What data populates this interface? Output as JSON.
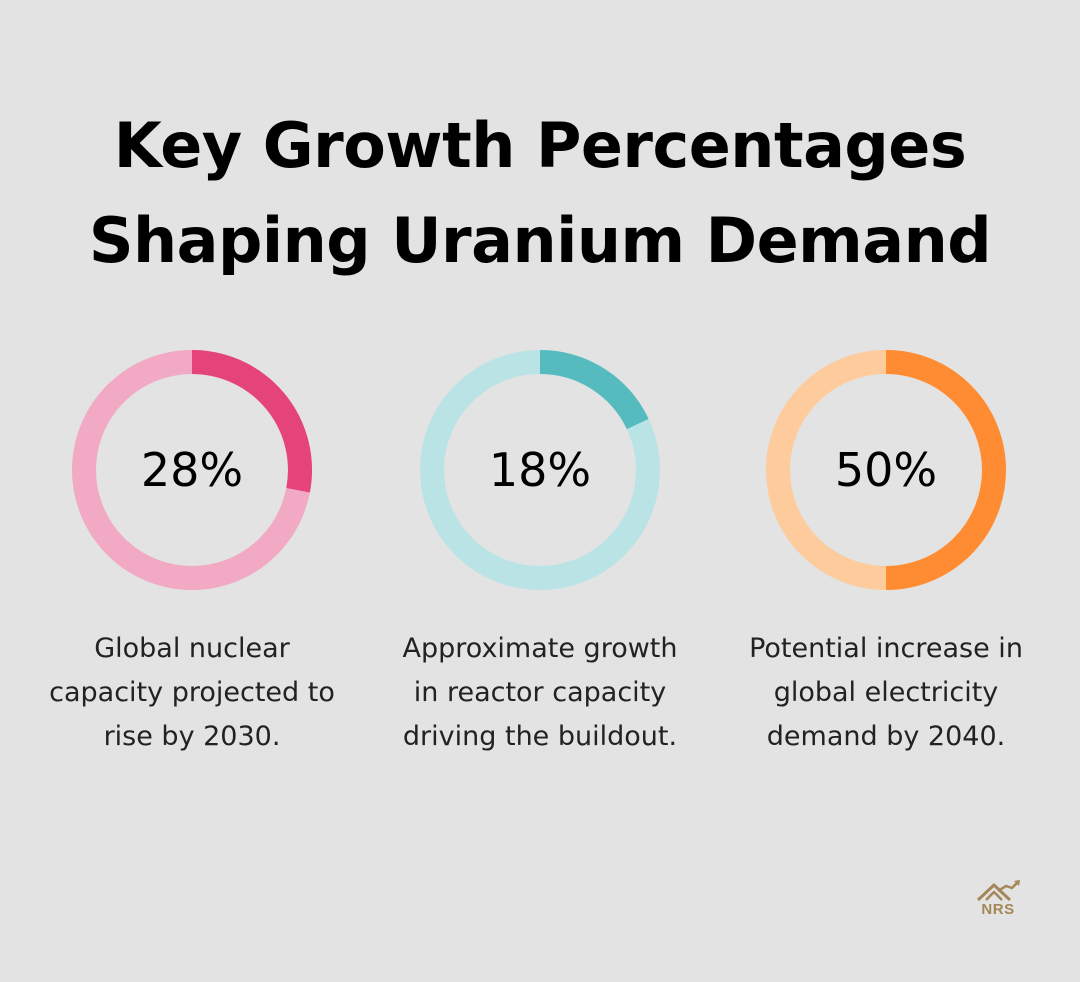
{
  "title_lines": [
    "Key Growth Percentages",
    "Shaping Uranium Demand"
  ],
  "chart_data": [
    {
      "type": "pie",
      "variant": "donut",
      "value": 28,
      "label": "28%",
      "description_lines": [
        "Global nuclear",
        "capacity projected to",
        "rise by 2030."
      ],
      "color": "#e5447a",
      "track_color": "#f2a9c3"
    },
    {
      "type": "pie",
      "variant": "donut",
      "value": 18,
      "label": "18%",
      "description_lines": [
        "Approximate growth",
        "in reactor capacity",
        "driving the buildout."
      ],
      "color": "#56bbbf",
      "track_color": "#bae3e5"
    },
    {
      "type": "pie",
      "variant": "donut",
      "value": 50,
      "label": "50%",
      "description_lines": [
        "Potential increase in",
        "global electricity",
        "demand by 2040."
      ],
      "color": "#ff8c33",
      "track_color": "#fecb9d"
    }
  ],
  "logo": {
    "text": "NRS",
    "icon": "house-chart-icon",
    "color": "#a5875a"
  }
}
